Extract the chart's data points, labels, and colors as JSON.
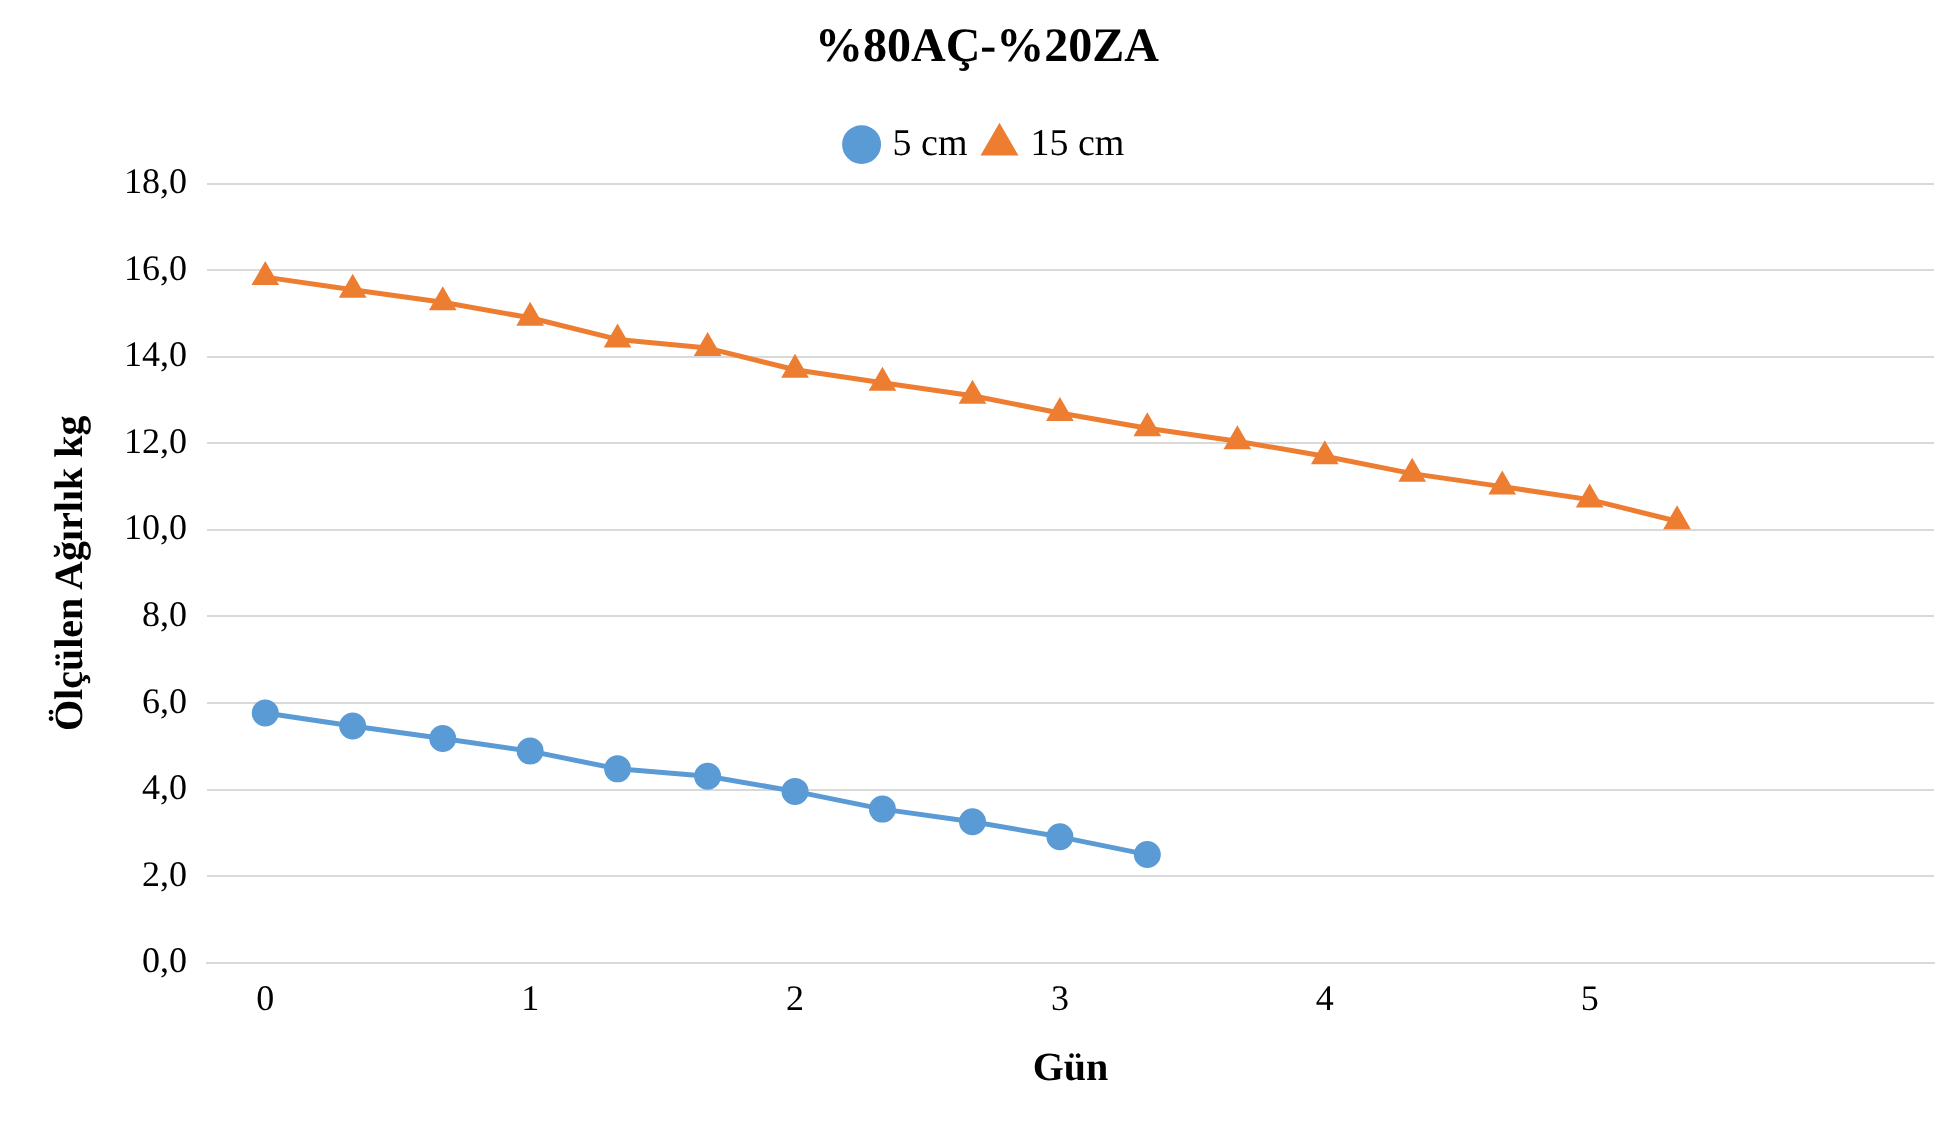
{
  "chart_data": {
    "type": "line",
    "title": "%80AÇ-%20ZA",
    "xlabel": "Gün",
    "ylabel": "Ölçülen Ağırlık kg",
    "xlim": [
      -0.22,
      6.3
    ],
    "xticks": [
      0,
      1,
      2,
      3,
      4,
      5
    ],
    "ylim": [
      0,
      18
    ],
    "yticks": [
      {
        "value": 0,
        "label": "0,0"
      },
      {
        "value": 2,
        "label": "2,0"
      },
      {
        "value": 4,
        "label": "4,0"
      },
      {
        "value": 6,
        "label": "6,0"
      },
      {
        "value": 8,
        "label": "8,0"
      },
      {
        "value": 10,
        "label": "10,0"
      },
      {
        "value": 12,
        "label": "12,0"
      },
      {
        "value": 14,
        "label": "14,0"
      },
      {
        "value": 16,
        "label": "16,0"
      },
      {
        "value": 18,
        "label": "18,0"
      }
    ],
    "grid": "y",
    "legend": "top",
    "line_style": "solid",
    "series": [
      {
        "name": "5 cm",
        "color": "#5b9bd5",
        "marker": "circle",
        "x": [
          0,
          0.33,
          0.67,
          1,
          1.33,
          1.67,
          2,
          2.33,
          2.67,
          3,
          3.33
        ],
        "values": [
          5.77,
          5.47,
          5.18,
          4.89,
          4.48,
          4.31,
          3.96,
          3.55,
          3.26,
          2.91,
          2.5
        ]
      },
      {
        "name": "15 cm",
        "color": "#ed7d31",
        "marker": "triangle",
        "x": [
          0,
          0.33,
          0.67,
          1,
          1.33,
          1.67,
          2,
          2.33,
          2.67,
          3,
          3.33,
          3.67,
          4,
          4.33,
          4.67,
          5,
          5.33
        ],
        "values": [
          15.84,
          15.55,
          15.26,
          14.9,
          14.4,
          14.2,
          13.7,
          13.4,
          13.1,
          12.7,
          12.35,
          12.05,
          11.7,
          11.3,
          11.0,
          10.7,
          10.2
        ]
      }
    ]
  }
}
